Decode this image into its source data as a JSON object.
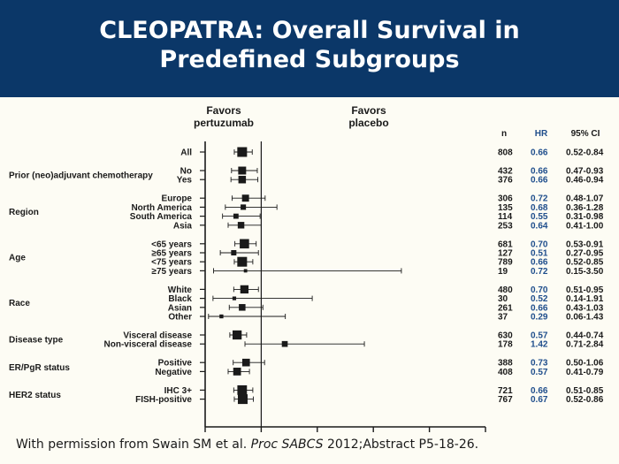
{
  "title": {
    "line1": "CLEOPATRA: Overall Survival in",
    "line2": "Predefined Subgroups"
  },
  "footer": {
    "prefix": "With permission from Swain SM et al. ",
    "journal": "Proc SABCS",
    "suffix": " 2012;Abstract P5-18-26."
  },
  "colors": {
    "header_bg": "#0b3768",
    "hr_text": "#1f4e8c",
    "text": "#1a1a1a"
  },
  "chart_data": {
    "type": "forest",
    "favors_left": [
      "Favors",
      "pertuzumab"
    ],
    "favors_right": [
      "Favors",
      "placebo"
    ],
    "column_headers": {
      "n": "n",
      "hr": "HR",
      "ci": "95% CI"
    },
    "xlim": [
      0,
      5
    ],
    "x_ticks": [
      0,
      1,
      2,
      3,
      4,
      5
    ],
    "reference_line": 1,
    "groups": [
      {
        "label": "",
        "items": [
          {
            "label": "All",
            "n": 808,
            "hr": 0.66,
            "ci": "0.52-0.84",
            "lo": 0.52,
            "hi": 0.84
          }
        ]
      },
      {
        "label": "Prior (neo)adjuvant chemotherapy",
        "items": [
          {
            "label": "No",
            "n": 432,
            "hr": 0.66,
            "ci": "0.47-0.93",
            "lo": 0.47,
            "hi": 0.93
          },
          {
            "label": "Yes",
            "n": 376,
            "hr": 0.66,
            "ci": "0.46-0.94",
            "lo": 0.46,
            "hi": 0.94
          }
        ]
      },
      {
        "label": "Region",
        "items": [
          {
            "label": "Europe",
            "n": 306,
            "hr": 0.72,
            "ci": "0.48-1.07",
            "lo": 0.48,
            "hi": 1.07
          },
          {
            "label": "North America",
            "n": 135,
            "hr": 0.68,
            "ci": "0.36-1.28",
            "lo": 0.36,
            "hi": 1.28
          },
          {
            "label": "South America",
            "n": 114,
            "hr": 0.55,
            "ci": "0.31-0.98",
            "lo": 0.31,
            "hi": 0.98
          },
          {
            "label": "Asia",
            "n": 253,
            "hr": 0.64,
            "ci": "0.41-1.00",
            "lo": 0.41,
            "hi": 1.0
          }
        ]
      },
      {
        "label": "Age",
        "items": [
          {
            "label": "<65 years",
            "n": 681,
            "hr": 0.7,
            "ci": "0.53-0.91",
            "lo": 0.53,
            "hi": 0.91
          },
          {
            "label": "≥65 years",
            "n": 127,
            "hr": 0.51,
            "ci": "0.27-0.95",
            "lo": 0.27,
            "hi": 0.95
          },
          {
            "label": "<75 years",
            "n": 789,
            "hr": 0.66,
            "ci": "0.52-0.85",
            "lo": 0.52,
            "hi": 0.85
          },
          {
            "label": "≥75 years",
            "n": 19,
            "hr": 0.72,
            "ci": "0.15-3.50",
            "lo": 0.15,
            "hi": 3.5
          }
        ]
      },
      {
        "label": "Race",
        "items": [
          {
            "label": "White",
            "n": 480,
            "hr": 0.7,
            "ci": "0.51-0.95",
            "lo": 0.51,
            "hi": 0.95
          },
          {
            "label": "Black",
            "n": 30,
            "hr": 0.52,
            "ci": "0.14-1.91",
            "lo": 0.14,
            "hi": 1.91
          },
          {
            "label": "Asian",
            "n": 261,
            "hr": 0.66,
            "ci": "0.43-1.03",
            "lo": 0.43,
            "hi": 1.03
          },
          {
            "label": "Other",
            "n": 37,
            "hr": 0.29,
            "ci": "0.06-1.43",
            "lo": 0.06,
            "hi": 1.43
          }
        ]
      },
      {
        "label": "Disease type",
        "items": [
          {
            "label": "Visceral disease",
            "n": 630,
            "hr": 0.57,
            "ci": "0.44-0.74",
            "lo": 0.44,
            "hi": 0.74
          },
          {
            "label": "Non-visceral disease",
            "n": 178,
            "hr": 1.42,
            "ci": "0.71-2.84",
            "lo": 0.71,
            "hi": 2.84
          }
        ]
      },
      {
        "label": "ER/PgR status",
        "items": [
          {
            "label": "Positive",
            "n": 388,
            "hr": 0.73,
            "ci": "0.50-1.06",
            "lo": 0.5,
            "hi": 1.06
          },
          {
            "label": "Negative",
            "n": 408,
            "hr": 0.57,
            "ci": "0.41-0.79",
            "lo": 0.41,
            "hi": 0.79
          }
        ]
      },
      {
        "label": "HER2 status",
        "items": [
          {
            "label": "IHC 3+",
            "n": 721,
            "hr": 0.66,
            "ci": "0.51-0.85",
            "lo": 0.51,
            "hi": 0.85
          },
          {
            "label": "FISH-positive",
            "n": 767,
            "hr": 0.67,
            "ci": "0.52-0.86",
            "lo": 0.52,
            "hi": 0.86
          }
        ]
      }
    ]
  }
}
